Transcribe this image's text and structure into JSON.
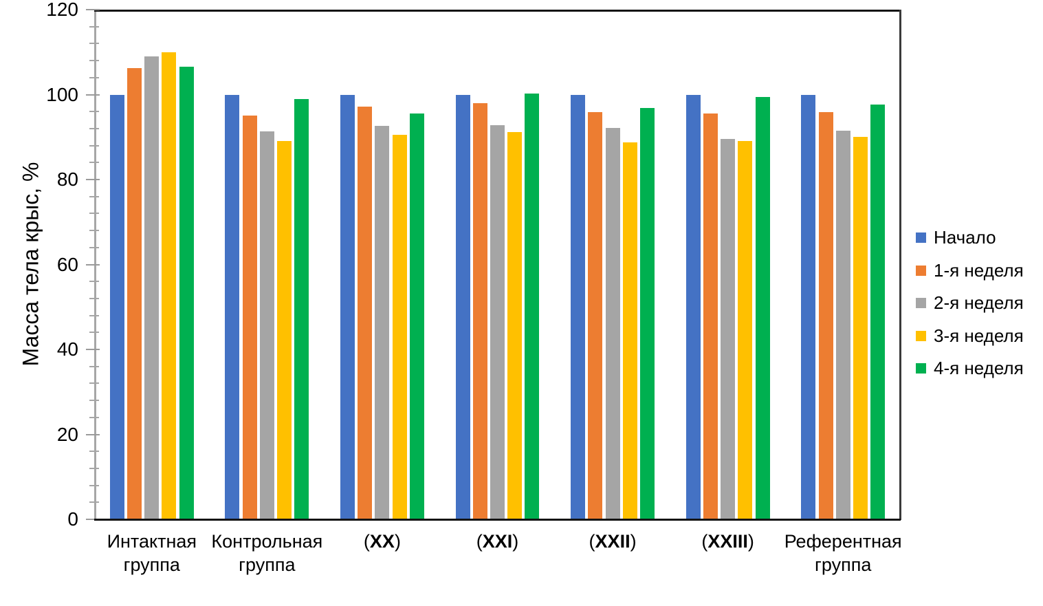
{
  "chart_data": {
    "type": "bar",
    "title": "",
    "xlabel": "",
    "ylabel": "Масса тела крыс, %",
    "ylim": [
      0,
      120
    ],
    "y_major_step": 20,
    "y_minor_step": 4,
    "y_tick_labels": [
      "0",
      "20",
      "40",
      "60",
      "80",
      "100",
      "120"
    ],
    "grid": false,
    "legend_position": "right",
    "categories": [
      "Интактная группа",
      "Контрольная группа",
      "(XX)",
      "(XXI)",
      "(XXII)",
      "(XXIII)",
      "Референтная группа"
    ],
    "category_label_lines": [
      [
        "Интактная",
        "группа"
      ],
      [
        "Контрольная",
        "группа"
      ],
      [
        "(XX)"
      ],
      [
        "(XXI)"
      ],
      [
        "(XXII)"
      ],
      [
        "(XXIII)"
      ],
      [
        "Референтная",
        "группа"
      ]
    ],
    "series": [
      {
        "name": "Начало",
        "color": "#4472C4",
        "values": [
          100,
          100,
          100,
          100,
          100,
          100,
          100
        ]
      },
      {
        "name": "1-я неделя",
        "color": "#ED7D31",
        "values": [
          106.3,
          95.0,
          97.1,
          98.0,
          95.9,
          95.5,
          95.8
        ]
      },
      {
        "name": "2-я неделя",
        "color": "#A5A5A5",
        "values": [
          109.0,
          91.4,
          92.6,
          92.8,
          92.2,
          89.5,
          91.5
        ]
      },
      {
        "name": "3-я неделя",
        "color": "#FFC000",
        "values": [
          110.0,
          89.1,
          90.6,
          91.2,
          88.8,
          89.0,
          90.0
        ]
      },
      {
        "name": "4-я неделя",
        "color": "#00B050",
        "values": [
          106.6,
          98.9,
          95.5,
          100.2,
          96.9,
          99.5,
          97.7
        ]
      }
    ]
  }
}
